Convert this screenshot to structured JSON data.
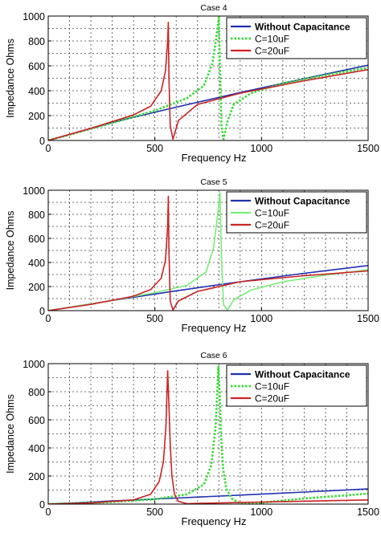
{
  "chart_data": [
    {
      "type": "line",
      "title": "Case 4",
      "xlabel": "Frequency Hz",
      "ylabel": "Impedance Ohms",
      "xlim": [
        0,
        1500
      ],
      "ylim": [
        0,
        1000
      ],
      "xticks": [
        0,
        500,
        1000,
        1500
      ],
      "yticks": [
        0,
        200,
        400,
        600,
        800,
        1000
      ],
      "grid": true,
      "legend_position": "top-right",
      "series": [
        {
          "name": "Without Capacitance",
          "color": "#1f2fb0",
          "style": "solid",
          "x": [
            0,
            300,
            600,
            900,
            1200,
            1500
          ],
          "y": [
            0,
            145,
            268,
            385,
            497,
            605
          ]
        },
        {
          "name": "C=10uF",
          "color": "#33dd33",
          "style": "dotted",
          "x": [
            0,
            300,
            500,
            650,
            730,
            770,
            790,
            800,
            805,
            812,
            822,
            840,
            870,
            950,
            1100,
            1300,
            1500
          ],
          "y": [
            0,
            140,
            240,
            340,
            440,
            620,
            850,
            990,
            600,
            120,
            10,
            150,
            290,
            380,
            460,
            525,
            585
          ]
        },
        {
          "name": "C=20uF",
          "color": "#cc2222",
          "style": "solid",
          "x": [
            0,
            200,
            400,
            480,
            530,
            550,
            560,
            563,
            566,
            572,
            585,
            610,
            700,
            900,
            1200,
            1500
          ],
          "y": [
            0,
            98,
            205,
            275,
            400,
            560,
            800,
            950,
            500,
            120,
            10,
            160,
            290,
            380,
            480,
            570
          ]
        }
      ]
    },
    {
      "type": "line",
      "title": "Case 5",
      "xlabel": "Frequency Hz",
      "ylabel": "Impedance Ohms",
      "xlim": [
        0,
        1500
      ],
      "ylim": [
        0,
        1000
      ],
      "xticks": [
        0,
        500,
        1000,
        1500
      ],
      "yticks": [
        0,
        200,
        400,
        600,
        800,
        1000
      ],
      "grid": true,
      "legend_position": "top-right",
      "series": [
        {
          "name": "Without Capacitance",
          "color": "#1f2fb0",
          "style": "solid",
          "x": [
            0,
            300,
            600,
            900,
            1200,
            1500
          ],
          "y": [
            0,
            85,
            165,
            240,
            310,
            375
          ]
        },
        {
          "name": "C=10uF",
          "color": "#77ee77",
          "style": "solid",
          "x": [
            0,
            300,
            500,
            650,
            740,
            775,
            795,
            805,
            812,
            822,
            840,
            870,
            950,
            1100,
            1300,
            1500
          ],
          "y": [
            0,
            85,
            150,
            210,
            320,
            520,
            800,
            980,
            450,
            50,
            5,
            90,
            170,
            240,
            295,
            340
          ]
        },
        {
          "name": "C=20uF",
          "color": "#cc2222",
          "style": "solid",
          "x": [
            0,
            200,
            400,
            480,
            530,
            550,
            560,
            563,
            566,
            572,
            585,
            610,
            700,
            900,
            1200,
            1500
          ],
          "y": [
            0,
            52,
            120,
            175,
            270,
            420,
            700,
            950,
            500,
            80,
            5,
            80,
            160,
            240,
            290,
            330
          ]
        }
      ]
    },
    {
      "type": "line",
      "title": "Case 6",
      "xlabel": "Frequency Hz",
      "ylabel": "Impedance Ohms",
      "xlim": [
        0,
        1500
      ],
      "ylim": [
        0,
        1000
      ],
      "xticks": [
        0,
        500,
        1000,
        1500
      ],
      "yticks": [
        0,
        200,
        400,
        600,
        800,
        1000
      ],
      "grid": true,
      "legend_position": "top-right",
      "series": [
        {
          "name": "Without Capacitance",
          "color": "#1f2fb0",
          "style": "solid",
          "x": [
            0,
            300,
            600,
            900,
            1200,
            1500
          ],
          "y": [
            0,
            22,
            43,
            64,
            86,
            108
          ]
        },
        {
          "name": "C=10uF",
          "color": "#33dd33",
          "style": "dotted",
          "x": [
            0,
            300,
            500,
            650,
            730,
            765,
            785,
            798,
            804,
            810,
            820,
            835,
            860,
            900,
            1000,
            1200,
            1500
          ],
          "y": [
            0,
            15,
            35,
            70,
            140,
            280,
            560,
            980,
            800,
            500,
            250,
            110,
            40,
            5,
            10,
            40,
            75
          ]
        },
        {
          "name": "C=20uF",
          "color": "#cc2222",
          "style": "solid",
          "x": [
            0,
            200,
            400,
            480,
            520,
            540,
            552,
            560,
            566,
            572,
            580,
            592,
            610,
            650,
            700,
            1000,
            1500
          ],
          "y": [
            0,
            8,
            30,
            70,
            160,
            300,
            560,
            950,
            700,
            420,
            200,
            70,
            20,
            3,
            5,
            15,
            30
          ]
        }
      ]
    }
  ]
}
